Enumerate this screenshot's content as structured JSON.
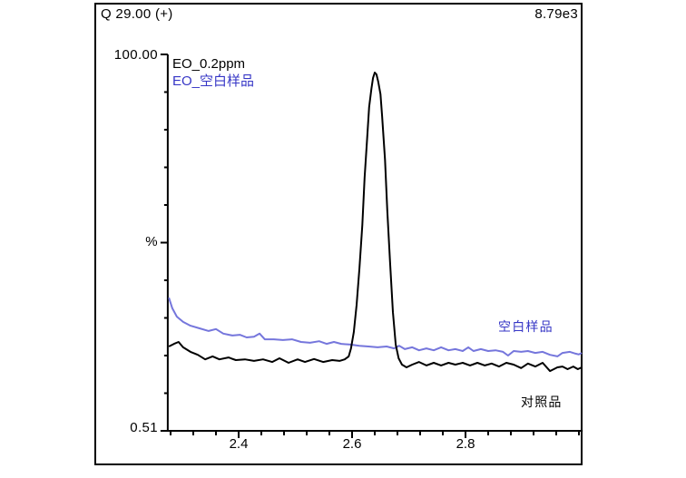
{
  "header": {
    "left": "Q 29.00 (+)",
    "right": "8.79e3"
  },
  "legend": [
    {
      "label": "EO_0.2ppm",
      "color": "#000000"
    },
    {
      "label": "EO_空白样品",
      "color": "#3636c6"
    }
  ],
  "annotations": [
    {
      "text": "空白样品",
      "color": "#3636c6"
    },
    {
      "text": "对照品",
      "color": "#000000"
    }
  ],
  "axes": {
    "y_top_label": "100.00",
    "y_mid_label": "%",
    "y_bottom_label": "0.51",
    "x_tick_labels": [
      "2.4",
      "2.6",
      "2.8"
    ]
  },
  "chart_data": {
    "type": "line",
    "title": "Q 29.00 (+)",
    "intensity_full_scale": "8.79e3",
    "xlabel": "",
    "ylabel": "%",
    "xlim": [
      2.275,
      3.005
    ],
    "ylim": [
      0.51,
      100.0
    ],
    "x_major_ticks": [
      2.4,
      2.6,
      2.8
    ],
    "x_minor_step": 0.04,
    "y_minor_divisions": 10,
    "grid": false,
    "legend_position": "top-left-inside",
    "series": [
      {
        "name": "EO_0.2ppm",
        "annotation": "对照品",
        "color": "#000000",
        "peak_apex_x": 2.64,
        "peak_apex_y": 95.2,
        "points": [
          [
            2.277,
            22.8
          ],
          [
            2.286,
            23.5
          ],
          [
            2.294,
            24.0
          ],
          [
            2.302,
            22.6
          ],
          [
            2.315,
            21.4
          ],
          [
            2.328,
            20.6
          ],
          [
            2.341,
            19.4
          ],
          [
            2.354,
            20.2
          ],
          [
            2.366,
            19.4
          ],
          [
            2.382,
            19.9
          ],
          [
            2.395,
            19.2
          ],
          [
            2.411,
            19.4
          ],
          [
            2.427,
            19.0
          ],
          [
            2.443,
            19.4
          ],
          [
            2.459,
            18.7
          ],
          [
            2.472,
            19.7
          ],
          [
            2.488,
            18.5
          ],
          [
            2.504,
            19.4
          ],
          [
            2.517,
            18.7
          ],
          [
            2.533,
            19.5
          ],
          [
            2.549,
            18.7
          ],
          [
            2.565,
            19.2
          ],
          [
            2.578,
            19.0
          ],
          [
            2.587,
            19.4
          ],
          [
            2.594,
            20.2
          ],
          [
            2.598,
            22.3
          ],
          [
            2.603,
            26.6
          ],
          [
            2.608,
            33.8
          ],
          [
            2.613,
            43.4
          ],
          [
            2.618,
            54.9
          ],
          [
            2.622,
            67.4
          ],
          [
            2.627,
            78.9
          ],
          [
            2.63,
            86.1
          ],
          [
            2.634,
            90.9
          ],
          [
            2.637,
            93.8
          ],
          [
            2.64,
            95.2
          ],
          [
            2.643,
            94.7
          ],
          [
            2.646,
            92.8
          ],
          [
            2.65,
            89.5
          ],
          [
            2.653,
            83.7
          ],
          [
            2.658,
            72.2
          ],
          [
            2.662,
            58.8
          ],
          [
            2.667,
            44.9
          ],
          [
            2.672,
            31.9
          ],
          [
            2.677,
            23.3
          ],
          [
            2.682,
            19.7
          ],
          [
            2.688,
            18.0
          ],
          [
            2.696,
            17.3
          ],
          [
            2.706,
            18.0
          ],
          [
            2.718,
            18.7
          ],
          [
            2.731,
            17.8
          ],
          [
            2.744,
            18.5
          ],
          [
            2.757,
            17.8
          ],
          [
            2.77,
            18.5
          ],
          [
            2.782,
            18.0
          ],
          [
            2.795,
            18.5
          ],
          [
            2.808,
            17.8
          ],
          [
            2.821,
            18.5
          ],
          [
            2.834,
            17.8
          ],
          [
            2.846,
            18.3
          ],
          [
            2.859,
            17.5
          ],
          [
            2.872,
            18.5
          ],
          [
            2.885,
            18.0
          ],
          [
            2.898,
            17.1
          ],
          [
            2.91,
            18.3
          ],
          [
            2.923,
            17.5
          ],
          [
            2.936,
            18.5
          ],
          [
            2.949,
            16.3
          ],
          [
            2.962,
            17.3
          ],
          [
            2.971,
            17.5
          ],
          [
            2.98,
            16.8
          ],
          [
            2.99,
            17.5
          ],
          [
            2.998,
            16.8
          ],
          [
            3.005,
            17.3
          ]
        ]
      },
      {
        "name": "EO_空白样品",
        "annotation": "空白样品",
        "color": "#7576dc",
        "points": [
          [
            2.277,
            35.7
          ],
          [
            2.283,
            32.9
          ],
          [
            2.291,
            30.7
          ],
          [
            2.302,
            29.3
          ],
          [
            2.315,
            28.3
          ],
          [
            2.331,
            27.6
          ],
          [
            2.347,
            26.9
          ],
          [
            2.36,
            27.4
          ],
          [
            2.373,
            26.2
          ],
          [
            2.389,
            25.7
          ],
          [
            2.402,
            25.9
          ],
          [
            2.414,
            25.2
          ],
          [
            2.427,
            25.4
          ],
          [
            2.437,
            26.2
          ],
          [
            2.446,
            24.7
          ],
          [
            2.462,
            24.7
          ],
          [
            2.478,
            24.5
          ],
          [
            2.494,
            24.7
          ],
          [
            2.51,
            24.0
          ],
          [
            2.526,
            23.8
          ],
          [
            2.542,
            24.2
          ],
          [
            2.555,
            23.5
          ],
          [
            2.568,
            24.0
          ],
          [
            2.581,
            23.5
          ],
          [
            2.597,
            23.3
          ],
          [
            2.613,
            23.0
          ],
          [
            2.629,
            22.8
          ],
          [
            2.645,
            22.6
          ],
          [
            2.661,
            22.8
          ],
          [
            2.674,
            22.3
          ],
          [
            2.683,
            23.0
          ],
          [
            2.693,
            22.1
          ],
          [
            2.706,
            22.6
          ],
          [
            2.718,
            21.8
          ],
          [
            2.731,
            22.3
          ],
          [
            2.744,
            21.8
          ],
          [
            2.757,
            22.6
          ],
          [
            2.77,
            21.8
          ],
          [
            2.782,
            22.1
          ],
          [
            2.795,
            21.6
          ],
          [
            2.805,
            22.6
          ],
          [
            2.814,
            21.6
          ],
          [
            2.827,
            22.1
          ],
          [
            2.84,
            21.6
          ],
          [
            2.853,
            21.8
          ],
          [
            2.866,
            21.4
          ],
          [
            2.875,
            20.4
          ],
          [
            2.885,
            21.6
          ],
          [
            2.898,
            21.4
          ],
          [
            2.91,
            21.6
          ],
          [
            2.923,
            21.1
          ],
          [
            2.936,
            21.4
          ],
          [
            2.949,
            20.6
          ],
          [
            2.962,
            20.2
          ],
          [
            2.971,
            21.1
          ],
          [
            2.984,
            21.4
          ],
          [
            2.994,
            20.9
          ],
          [
            3.0,
            20.7
          ],
          [
            3.005,
            21.1
          ]
        ]
      }
    ]
  }
}
